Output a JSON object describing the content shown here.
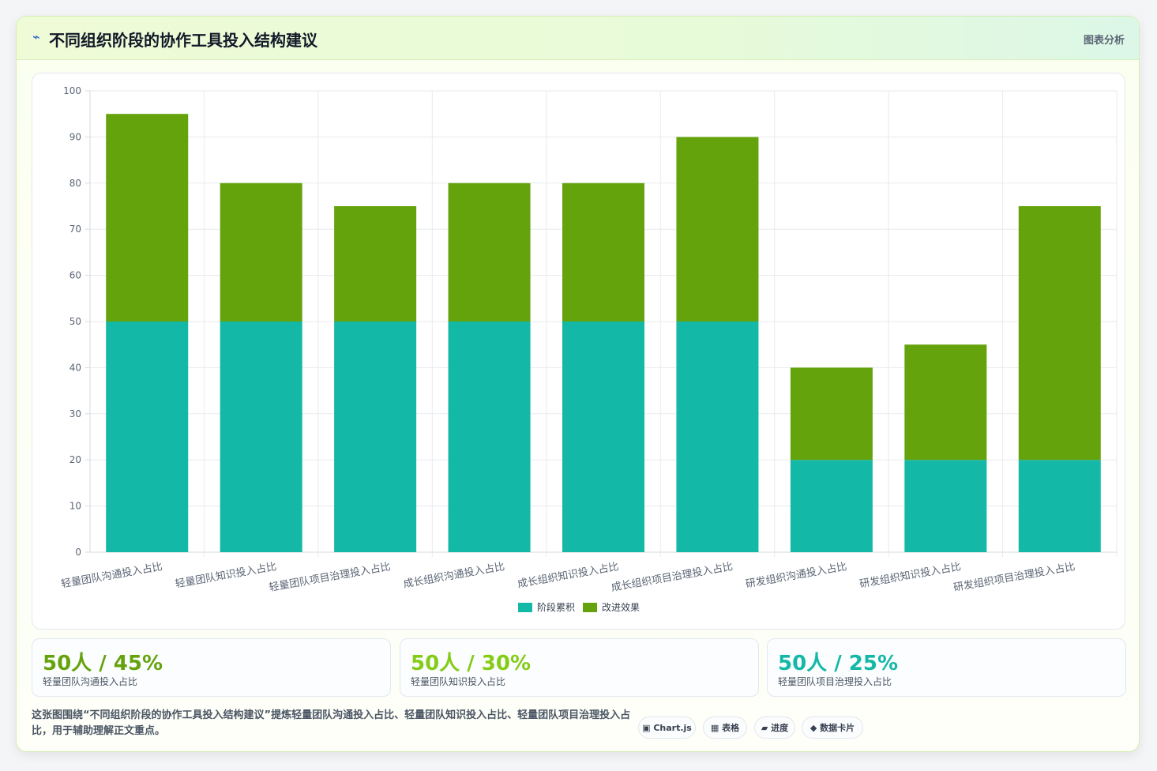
{
  "header": {
    "icon": "lightning-icon",
    "title": "不同组织阶段的协作工具投入结构建议",
    "tag": "图表分析"
  },
  "chart_data": {
    "type": "bar",
    "stacked": true,
    "categories": [
      "轻量团队沟通投入占比",
      "轻量团队知识投入占比",
      "轻量团队项目治理投入占比",
      "成长组织沟通投入占比",
      "成长组织知识投入占比",
      "成长组织项目治理投入占比",
      "研发组织沟通投入占比",
      "研发组织知识投入占比",
      "研发组织项目治理投入占比"
    ],
    "series": [
      {
        "name": "阶段累积",
        "color": "#14b8a6",
        "values": [
          50,
          50,
          50,
          50,
          50,
          50,
          20,
          20,
          20
        ]
      },
      {
        "name": "改进效果",
        "color": "#65a30d",
        "values": [
          45,
          30,
          25,
          30,
          30,
          40,
          20,
          25,
          55
        ]
      }
    ],
    "ylim": [
      0,
      100
    ],
    "yticks": [
      0,
      10,
      20,
      30,
      40,
      50,
      60,
      70,
      80,
      90,
      100
    ],
    "grid": true,
    "legend": "bottom-center"
  },
  "stats": [
    {
      "value": "50人 / 45%",
      "label": "轻量团队沟通投入占比",
      "color": "#65a30d"
    },
    {
      "value": "50人 / 30%",
      "label": "轻量团队知识投入占比",
      "color": "#84cc16"
    },
    {
      "value": "50人 / 25%",
      "label": "轻量团队项目治理投入占比",
      "color": "#14b8a6"
    }
  ],
  "description": "这张图围绕“不同组织阶段的协作工具投入结构建议”提炼轻量团队沟通投入占比、轻量团队知识投入占比、轻量团队项目治理投入占比，用于辅助理解正文重点。",
  "chips": [
    {
      "label": "▣ Chart.js",
      "icon": "chart-icon"
    },
    {
      "label": "▦ 表格",
      "icon": "table-icon"
    },
    {
      "label": "▰ 进度",
      "icon": "progress-icon"
    },
    {
      "label": "◆ 数据卡片",
      "icon": "card-icon"
    }
  ]
}
